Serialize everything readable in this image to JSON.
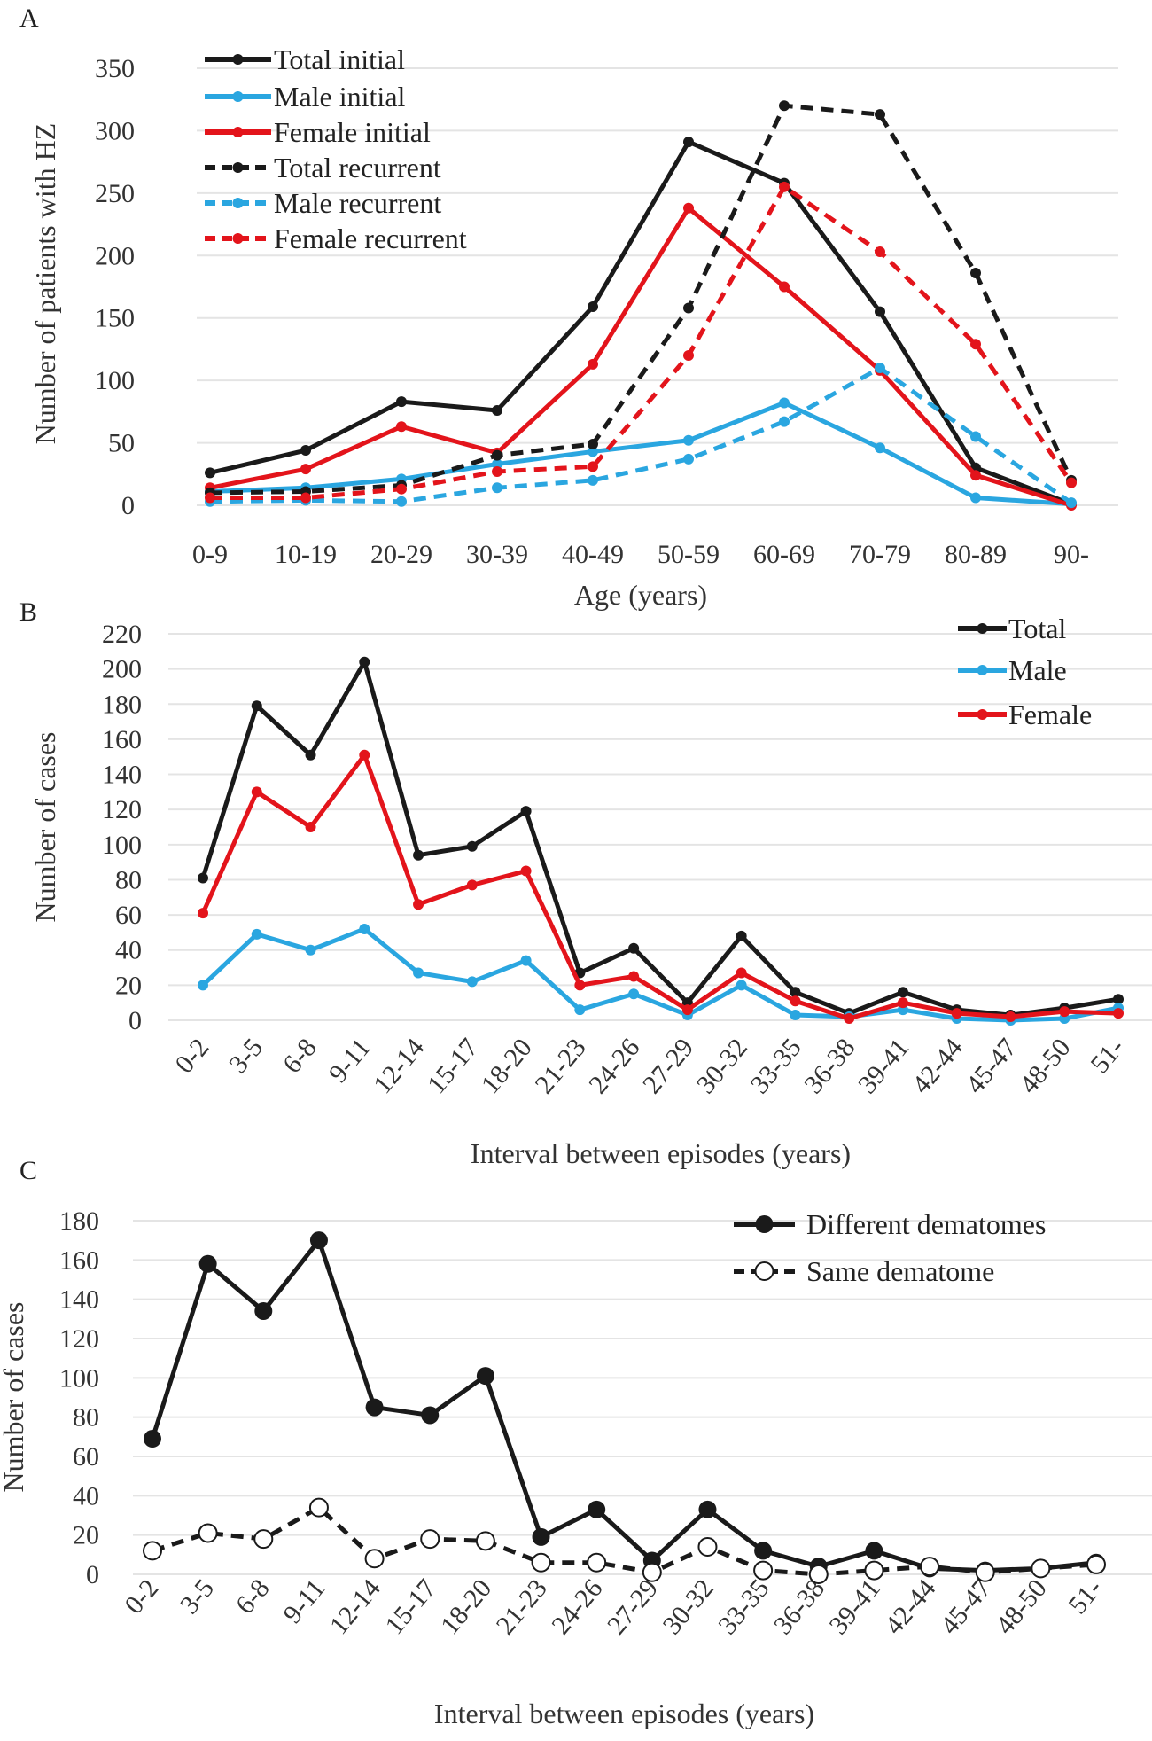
{
  "chart_data": [
    {
      "panel": "A",
      "type": "line",
      "title": "",
      "xlabel": "Age (years)",
      "ylabel": "Number of patients with HZ",
      "ylim": [
        0,
        350
      ],
      "yticks": [
        0,
        50,
        100,
        150,
        200,
        250,
        300,
        350
      ],
      "grid": true,
      "legend_placement": "top-left",
      "categories": [
        "0-9",
        "10-19",
        "20-29",
        "30-39",
        "40-49",
        "50-59",
        "60-69",
        "70-79",
        "80-89",
        "90-"
      ],
      "series": [
        {
          "name": "Total initial",
          "color": "#1a1a1a",
          "dash": false,
          "values": [
            26,
            44,
            83,
            76,
            159,
            291,
            258,
            155,
            30,
            1
          ]
        },
        {
          "name": "Male initial",
          "color": "#2aa6e0",
          "dash": false,
          "values": [
            11,
            14,
            21,
            33,
            43,
            52,
            82,
            46,
            6,
            1
          ]
        },
        {
          "name": "Female initial",
          "color": "#e3141b",
          "dash": false,
          "values": [
            14,
            29,
            63,
            42,
            113,
            238,
            175,
            108,
            24,
            0
          ]
        },
        {
          "name": "Total recurrent",
          "color": "#1a1a1a",
          "dash": true,
          "values": [
            10,
            11,
            16,
            40,
            49,
            158,
            320,
            313,
            186,
            20
          ]
        },
        {
          "name": "Male recurrent",
          "color": "#2aa6e0",
          "dash": true,
          "values": [
            3,
            4,
            3,
            14,
            20,
            37,
            67,
            110,
            55,
            2
          ]
        },
        {
          "name": "Female recurrent",
          "color": "#e3141b",
          "dash": true,
          "values": [
            6,
            6,
            13,
            27,
            31,
            120,
            255,
            203,
            129,
            18
          ]
        }
      ]
    },
    {
      "panel": "B",
      "type": "line",
      "title": "",
      "xlabel": "Interval between episodes (years)",
      "ylabel": "Number of  cases",
      "ylim": [
        0,
        220
      ],
      "yticks": [
        0,
        20,
        40,
        60,
        80,
        100,
        120,
        140,
        160,
        180,
        200,
        220
      ],
      "grid": true,
      "legend_placement": "top-right",
      "categories": [
        "0-2",
        "3-5",
        "6-8",
        "9-11",
        "12-14",
        "15-17",
        "18-20",
        "21-23",
        "24-26",
        "27-29",
        "30-32",
        "33-35",
        "36-38",
        "39-41",
        "42-44",
        "45-47",
        "48-50",
        "51-"
      ],
      "series": [
        {
          "name": "Total",
          "color": "#1a1a1a",
          "dash": false,
          "values": [
            81,
            179,
            151,
            204,
            94,
            99,
            119,
            27,
            41,
            10,
            48,
            16,
            4,
            16,
            6,
            3,
            7,
            12
          ]
        },
        {
          "name": "Male",
          "color": "#2aa6e0",
          "dash": false,
          "values": [
            20,
            49,
            40,
            52,
            27,
            22,
            34,
            6,
            15,
            3,
            20,
            3,
            2,
            6,
            1,
            0,
            1,
            7
          ]
        },
        {
          "name": "Female",
          "color": "#e3141b",
          "dash": false,
          "values": [
            61,
            130,
            110,
            151,
            66,
            77,
            85,
            20,
            25,
            6,
            27,
            11,
            1,
            10,
            4,
            2,
            5,
            4
          ]
        }
      ]
    },
    {
      "panel": "C",
      "type": "line",
      "title": "",
      "xlabel": "Interval between episodes (years)",
      "ylabel": "Number of  cases",
      "ylim": [
        0,
        180
      ],
      "yticks": [
        0,
        20,
        40,
        60,
        80,
        100,
        120,
        140,
        160,
        180
      ],
      "grid": true,
      "legend_placement": "top-right",
      "categories": [
        "0-2",
        "3-5",
        "6-8",
        "9-11",
        "12-14",
        "15-17",
        "18-20",
        "21-23",
        "24-26",
        "27-29",
        "30-32",
        "33-35",
        "36-38",
        "39-41",
        "42-44",
        "45-47",
        "48-50",
        "51-"
      ],
      "series": [
        {
          "name": "Different dematomes",
          "color": "#1a1a1a",
          "dash": false,
          "marker": "filled",
          "values": [
            69,
            158,
            134,
            170,
            85,
            81,
            101,
            19,
            33,
            7,
            33,
            12,
            4,
            12,
            3,
            2,
            3,
            6
          ]
        },
        {
          "name": "Same dematome",
          "color": "#1a1a1a",
          "dash": true,
          "marker": "open",
          "values": [
            12,
            21,
            18,
            34,
            8,
            18,
            17,
            6,
            6,
            1,
            14,
            2,
            0,
            2,
            4,
            1,
            3,
            5
          ]
        }
      ]
    }
  ]
}
